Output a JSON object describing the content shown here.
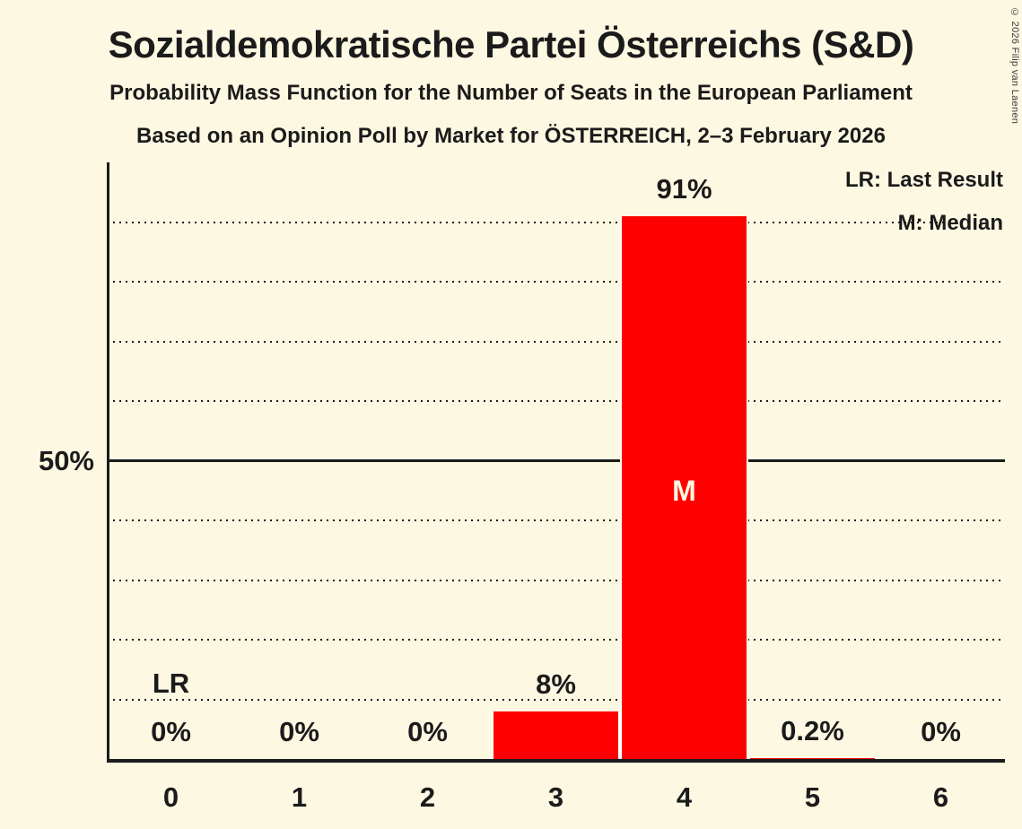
{
  "title": "Sozialdemokratische Partei Österreichs (S&D)",
  "subtitle1": "Probability Mass Function for the Number of Seats in the European Parliament",
  "subtitle2": "Based on an Opinion Poll by Market for ÖSTERREICH, 2–3 February 2026",
  "copyright": "© 2026 Filip van Laenen",
  "legend": {
    "lr": "LR: Last Result",
    "m": "M: Median"
  },
  "y_axis": {
    "label_50": "50%"
  },
  "colors": {
    "background": "#fdf8e2",
    "bar": "#ff0000",
    "text": "#1b1b1b",
    "median_text": "#fdf8e2",
    "bar_separator": "#ffffff"
  },
  "chart_data": {
    "type": "bar",
    "title": "Probability Mass Function for the Number of Seats in the European Parliament",
    "categories": [
      "0",
      "1",
      "2",
      "3",
      "4",
      "5",
      "6"
    ],
    "values": [
      0,
      0,
      0,
      8,
      91,
      0.2,
      0
    ],
    "value_labels": [
      "0%",
      "0%",
      "0%",
      "8%",
      "91%",
      "0.2%",
      "0%"
    ],
    "xlabel": "",
    "ylabel": "",
    "ylim": [
      0,
      100
    ],
    "y_tick_labeled": [
      {
        "value": 50,
        "label": "50%"
      }
    ],
    "solid_gridline": 50,
    "dotted_gridlines": [
      10,
      20,
      30,
      40,
      60,
      70,
      80,
      90
    ],
    "grid": true,
    "legend_position": "top-right",
    "median": {
      "category_index": 4,
      "label": "M"
    },
    "last_result": {
      "category_index": 0,
      "label": "LR"
    }
  }
}
